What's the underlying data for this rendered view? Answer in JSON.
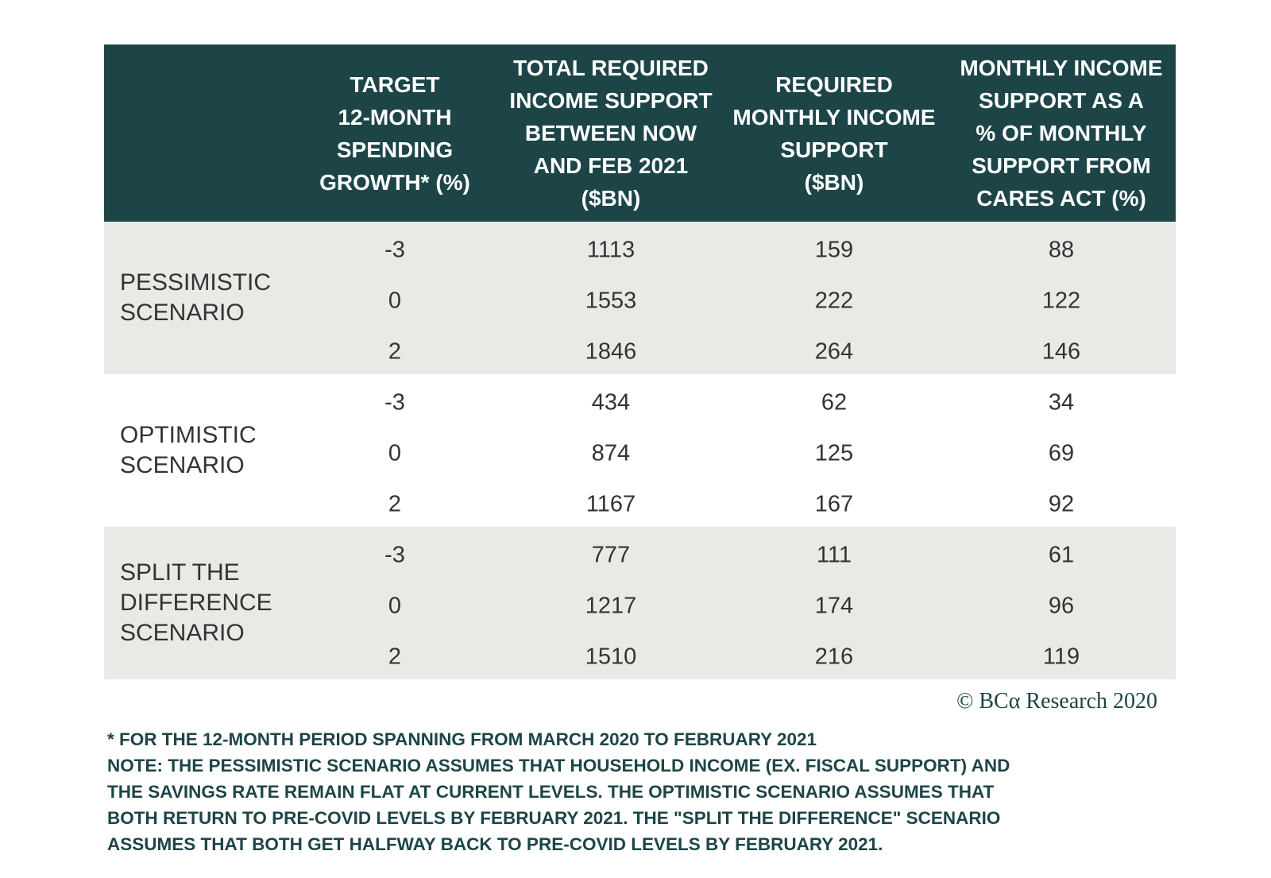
{
  "header": {
    "columns": [
      {
        "lines": [
          "TARGET",
          "12-MONTH",
          "SPENDING",
          "GROWTH* (%)"
        ]
      },
      {
        "lines": [
          "TOTAL REQUIRED",
          "INCOME SUPPORT",
          "BETWEEN NOW",
          "AND FEB 2021",
          "($BN)"
        ]
      },
      {
        "lines": [
          "REQUIRED",
          "MONTHLY INCOME",
          "SUPPORT",
          "($BN)"
        ]
      },
      {
        "lines": [
          "MONTHLY INCOME",
          "SUPPORT AS A",
          "% OF MONTHLY",
          "SUPPORT FROM",
          "CARES ACT (%)"
        ]
      }
    ]
  },
  "table": {
    "groups": [
      {
        "label": [
          "PESSIMISTIC",
          "SCENARIO"
        ],
        "rows": [
          [
            -3,
            1113,
            159,
            88
          ],
          [
            0,
            1553,
            222,
            122
          ],
          [
            2,
            1846,
            264,
            146
          ]
        ]
      },
      {
        "label": [
          "OPTIMISTIC",
          "SCENARIO"
        ],
        "rows": [
          [
            -3,
            434,
            62,
            34
          ],
          [
            0,
            874,
            125,
            69
          ],
          [
            2,
            1167,
            167,
            92
          ]
        ]
      },
      {
        "label": [
          "SPLIT THE",
          "DIFFERENCE",
          "SCENARIO"
        ],
        "rows": [
          [
            -3,
            777,
            111,
            61
          ],
          [
            0,
            1217,
            174,
            96
          ],
          [
            2,
            1510,
            216,
            119
          ]
        ]
      }
    ]
  },
  "copyright": "© BCα Research 2020",
  "footnotes": {
    "lines": [
      "* FOR THE 12-MONTH PERIOD SPANNING FROM MARCH 2020 TO FEBRUARY 2021",
      "NOTE: THE PESSIMISTIC SCENARIO ASSUMES THAT HOUSEHOLD INCOME (EX. FISCAL SUPPORT) AND",
      "THE SAVINGS RATE REMAIN FLAT AT CURRENT LEVELS. THE OPTIMISTIC SCENARIO ASSUMES THAT",
      "BOTH RETURN TO PRE-COVID LEVELS BY FEBRUARY 2021. THE \"SPLIT THE DIFFERENCE\" SCENARIO",
      "ASSUMES THAT BOTH GET HALFWAY BACK TO PRE-COVID LEVELS BY FEBRUARY 2021."
    ]
  }
}
